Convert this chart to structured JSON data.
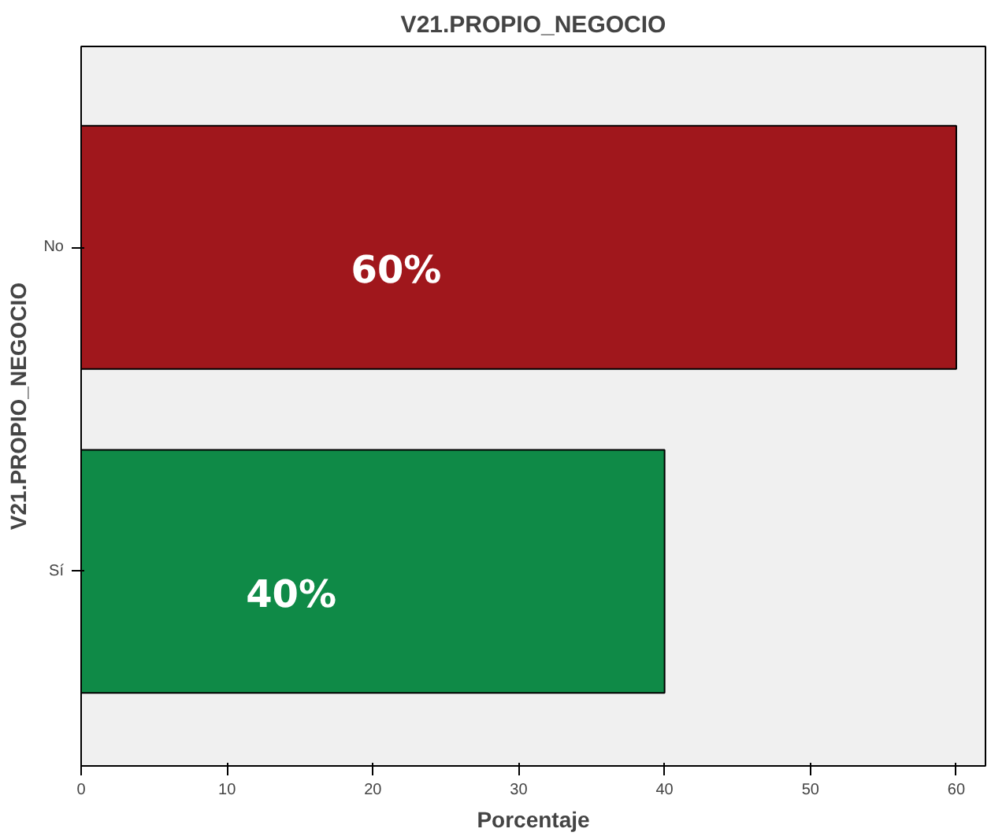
{
  "chart_data": {
    "type": "bar",
    "orientation": "horizontal",
    "title": "V21.PROPIO_NEGOCIO",
    "xlabel": "Porcentaje",
    "ylabel": "V21.PROPIO_NEGOCIO",
    "categories": [
      "No",
      "Sí"
    ],
    "values": [
      60,
      40
    ],
    "colors": [
      "#a0171c",
      "#0f8a47"
    ],
    "value_labels": [
      "60%",
      "40%"
    ],
    "xlim": [
      0,
      62
    ],
    "xticks": [
      0,
      10,
      20,
      30,
      40,
      50,
      60
    ],
    "grid": false
  }
}
